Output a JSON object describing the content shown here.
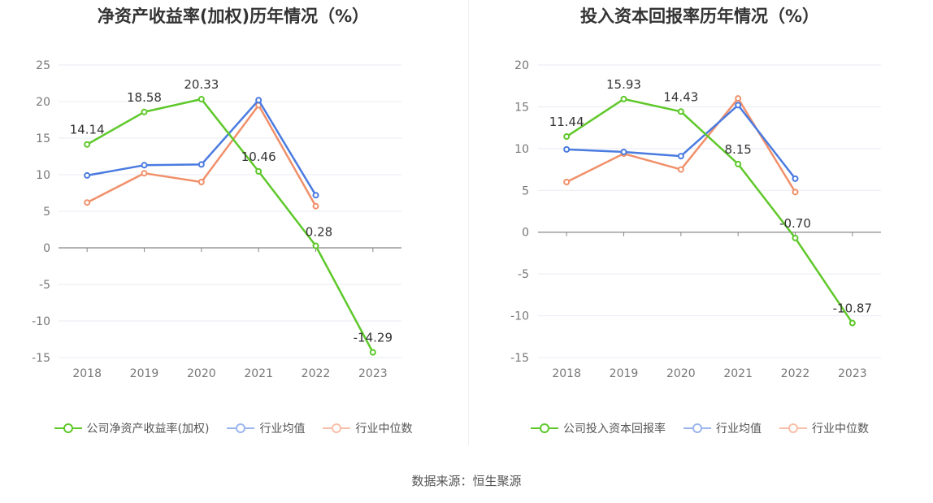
{
  "charts": [
    {
      "title": "净资产收益率(加权)历年情况（%）",
      "legend": [
        "公司净资产收益率(加权)",
        "行业均值",
        "行业中位数"
      ]
    },
    {
      "title": "投入资本回报率历年情况（%）",
      "legend": [
        "公司投入资本回报率",
        "行业均值",
        "行业中位数"
      ]
    }
  ],
  "source": "数据来源：恒生聚源",
  "colors": {
    "company": "#5ec82a",
    "avg": "#4a7be0",
    "median": "#f0906a"
  },
  "chart_data": [
    {
      "type": "line",
      "title": "净资产收益率(加权)历年情况（%）",
      "categories": [
        "2018",
        "2019",
        "2020",
        "2021",
        "2022",
        "2023"
      ],
      "ylim": [
        -15,
        25
      ],
      "yticks": [
        25,
        20,
        15,
        10,
        5,
        0,
        -5,
        -10,
        -15
      ],
      "grid": true,
      "legend_position": "bottom",
      "series": [
        {
          "name": "公司净资产收益率(加权)",
          "values": [
            14.14,
            18.58,
            20.33,
            10.46,
            0.28,
            -14.29
          ],
          "labels": [
            "14.14",
            "18.58",
            "20.33",
            "10.46",
            "0.28",
            "-14.29"
          ]
        },
        {
          "name": "行业均值",
          "values": [
            9.9,
            11.3,
            11.4,
            20.2,
            7.2,
            null
          ]
        },
        {
          "name": "行业中位数",
          "values": [
            6.2,
            10.2,
            9.0,
            19.5,
            5.7,
            null
          ]
        }
      ]
    },
    {
      "type": "line",
      "title": "投入资本回报率历年情况（%）",
      "categories": [
        "2018",
        "2019",
        "2020",
        "2021",
        "2022",
        "2023"
      ],
      "ylim": [
        -15,
        20
      ],
      "yticks": [
        20,
        15,
        10,
        5,
        0,
        -5,
        -10,
        -15
      ],
      "grid": true,
      "legend_position": "bottom",
      "series": [
        {
          "name": "公司投入资本回报率",
          "values": [
            11.44,
            15.93,
            14.43,
            8.15,
            -0.7,
            -10.87
          ],
          "labels": [
            "11.44",
            "15.93",
            "14.43",
            "8.15",
            "-0.70",
            "-10.87"
          ]
        },
        {
          "name": "行业均值",
          "values": [
            9.9,
            9.6,
            9.1,
            15.2,
            6.4,
            null
          ]
        },
        {
          "name": "行业中位数",
          "values": [
            6.0,
            9.4,
            7.5,
            16.0,
            4.8,
            null
          ]
        }
      ]
    }
  ]
}
